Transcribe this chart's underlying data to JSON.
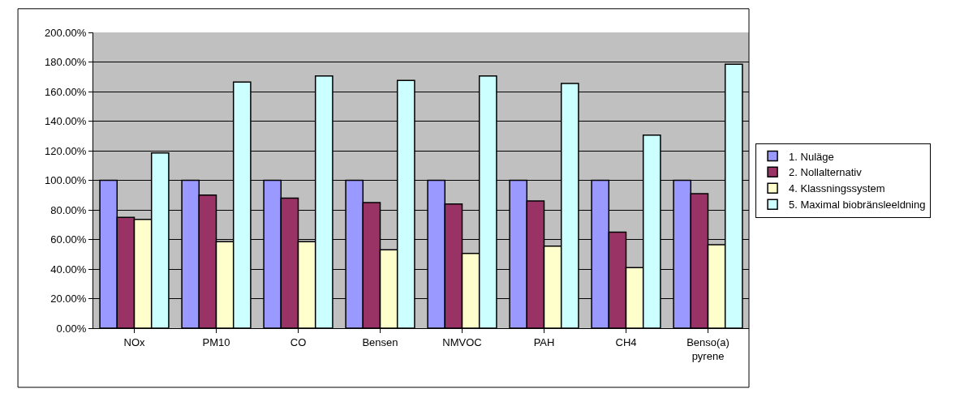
{
  "chart_data": {
    "type": "bar",
    "categories": [
      "NOx",
      "PM10",
      "CO",
      "Bensen",
      "NMVOC",
      "PAH",
      "CH4",
      "Benso(a) pyrene"
    ],
    "series": [
      {
        "name": "1. Nuläge",
        "color": "#9999ff",
        "values": [
          100,
          100,
          100,
          100,
          100,
          100,
          100,
          100
        ]
      },
      {
        "name": "2. Nollalternativ",
        "color": "#993366",
        "values": [
          75,
          90,
          88,
          85,
          84,
          86,
          65,
          91
        ]
      },
      {
        "name": "4. Klassningssystem",
        "color": "#ffffcc",
        "values": [
          73.5,
          58.5,
          58.5,
          53,
          50.5,
          55.5,
          41,
          56.5
        ]
      },
      {
        "name": "5. Maximal biobränsleeldning",
        "color": "#ccffff",
        "values": [
          118.5,
          166.5,
          170.5,
          167.5,
          170.5,
          165.5,
          130.5,
          178.5
        ]
      }
    ],
    "ylim": [
      0,
      200
    ],
    "yticks": [
      {
        "value": 0,
        "label": "0.00%"
      },
      {
        "value": 20,
        "label": "20.00%"
      },
      {
        "value": 40,
        "label": "40.00%"
      },
      {
        "value": 60,
        "label": "60.00%"
      },
      {
        "value": 80,
        "label": "80.00%"
      },
      {
        "value": 100,
        "label": "100.00%"
      },
      {
        "value": 120,
        "label": "120.00%"
      },
      {
        "value": 140,
        "label": "140.00%"
      },
      {
        "value": 160,
        "label": "160.00%"
      },
      {
        "value": 180,
        "label": "180.00%"
      },
      {
        "value": 200,
        "label": "200.00%"
      }
    ],
    "grid": "y",
    "legend": "right"
  }
}
